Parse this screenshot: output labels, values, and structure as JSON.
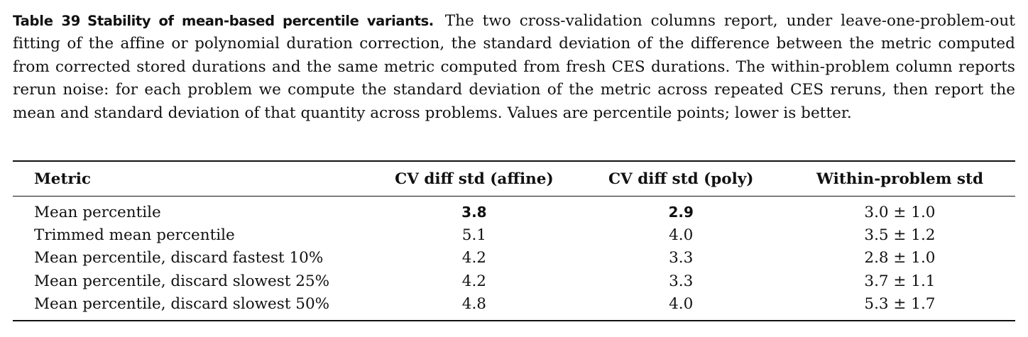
{
  "caption": {
    "label": "Table 39",
    "title": "Stability of mean-based percentile variants.",
    "text": "The two cross-validation columns report, under leave-one-problem-out fitting of the affine or polynomial duration correction, the standard deviation of the difference between the metric computed from corrected stored durations and the same metric computed from fresh CES durations. The within-problem column reports rerun noise: for each problem we compute the standard deviation of the metric across repeated CES reruns, then report the mean and standard deviation of that quantity across problems. Values are percentile points; lower is better."
  },
  "table": {
    "headers": {
      "metric": "Metric",
      "affine": "CV diff std (affine)",
      "poly": "CV diff std (poly)",
      "within": "Within-problem std"
    },
    "rows": [
      {
        "metric": "Mean percentile",
        "affine": "3.8",
        "poly": "2.9",
        "within": "3.0 ± 1.0"
      },
      {
        "metric": "Trimmed mean percentile",
        "affine": "5.1",
        "poly": "4.0",
        "within": "3.5 ± 1.2"
      },
      {
        "metric": "Mean percentile, discard fastest 10%",
        "affine": "4.2",
        "poly": "3.3",
        "within": "2.8 ± 1.0"
      },
      {
        "metric": "Mean percentile, discard slowest 25%",
        "affine": "4.2",
        "poly": "3.3",
        "within": "3.7 ± 1.1"
      },
      {
        "metric": "Mean percentile, discard slowest 50%",
        "affine": "4.8",
        "poly": "4.0",
        "within": "5.3 ± 1.7"
      }
    ]
  }
}
